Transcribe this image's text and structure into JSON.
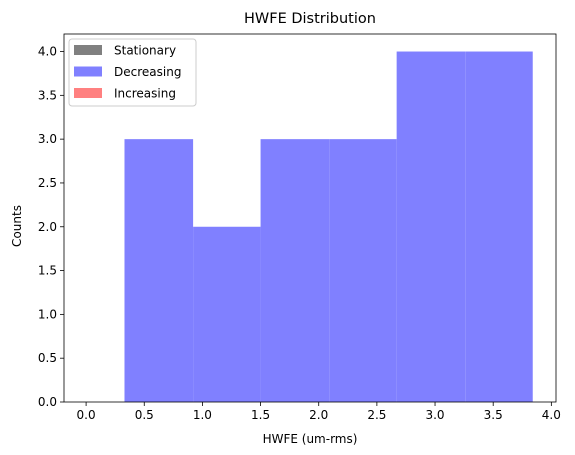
{
  "chart_data": {
    "type": "bar",
    "title": "HWFE Distribution",
    "xlabel": "HWFE (um-rms)",
    "ylabel": "Counts",
    "xlim": [
      -0.19,
      4.04
    ],
    "ylim": [
      0,
      4.2
    ],
    "xticks": [
      "0.0",
      "0.5",
      "1.0",
      "1.5",
      "2.0",
      "2.5",
      "3.0",
      "3.5",
      "4.0"
    ],
    "yticks": [
      "0.0",
      "0.5",
      "1.0",
      "1.5",
      "2.0",
      "2.5",
      "3.0",
      "3.5",
      "4.0"
    ],
    "legend_position": "upper-left",
    "series": [
      {
        "name": "Stationary",
        "color": "#808080",
        "bins": []
      },
      {
        "name": "Decreasing",
        "color": "#8080ff",
        "bins": [
          {
            "x0": 0.33,
            "x1": 0.92,
            "count": 3
          },
          {
            "x0": 0.92,
            "x1": 1.5,
            "count": 2
          },
          {
            "x0": 1.5,
            "x1": 2.09,
            "count": 3
          },
          {
            "x0": 2.09,
            "x1": 2.67,
            "count": 3
          },
          {
            "x0": 2.67,
            "x1": 3.26,
            "count": 4
          },
          {
            "x0": 3.26,
            "x1": 3.84,
            "count": 4
          }
        ]
      },
      {
        "name": "Increasing",
        "color": "#ff8080",
        "bins": []
      }
    ]
  }
}
